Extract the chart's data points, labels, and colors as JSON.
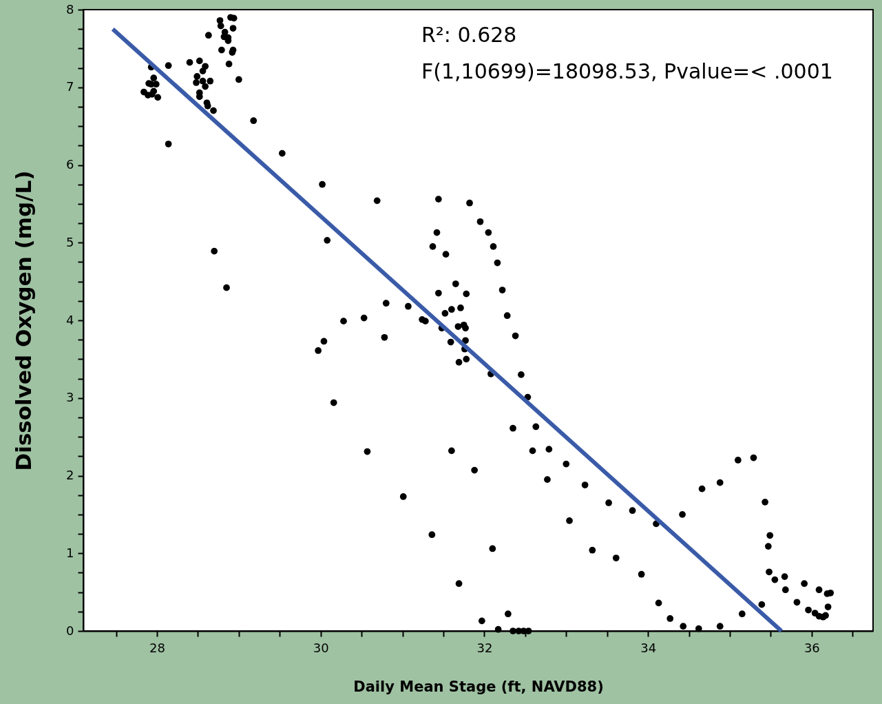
{
  "chart_data": {
    "type": "scatter",
    "xlabel": "Daily Mean Stage (ft, NAVD88)",
    "ylabel": "Dissolved Oxygen (mg/L)",
    "annotations": [
      "R²: 0.628",
      "F(1,10699)=18098.53, Pvalue=< .0001"
    ],
    "xlim": [
      27.1,
      36.75
    ],
    "ylim": [
      0,
      8
    ],
    "xticks": [
      {
        "value": 27.5,
        "label": null
      },
      28,
      {
        "value": 28.5,
        "label": null
      },
      {
        "value": 29,
        "label": null
      },
      {
        "value": 29.5,
        "label": null
      },
      30,
      {
        "value": 30.5,
        "label": null
      },
      {
        "value": 31,
        "label": null
      },
      {
        "value": 31.5,
        "label": null
      },
      32,
      {
        "value": 32.5,
        "label": null
      },
      {
        "value": 33,
        "label": null
      },
      {
        "value": 33.5,
        "label": null
      },
      34,
      {
        "value": 34.5,
        "label": null
      },
      {
        "value": 35,
        "label": null
      },
      {
        "value": 35.5,
        "label": null
      },
      36,
      {
        "value": 36.5,
        "label": null
      }
    ],
    "yticks": [
      0,
      {
        "value": 0.25,
        "label": null
      },
      {
        "value": 0.5,
        "label": null
      },
      {
        "value": 0.75,
        "label": null
      },
      1,
      {
        "value": 1.25,
        "label": null
      },
      {
        "value": 1.5,
        "label": null
      },
      {
        "value": 1.75,
        "label": null
      },
      2,
      {
        "value": 2.25,
        "label": null
      },
      {
        "value": 2.5,
        "label": null
      },
      {
        "value": 2.75,
        "label": null
      },
      3,
      {
        "value": 3.25,
        "label": null
      },
      {
        "value": 3.5,
        "label": null
      },
      {
        "value": 3.75,
        "label": null
      },
      4,
      {
        "value": 4.25,
        "label": null
      },
      {
        "value": 4.5,
        "label": null
      },
      {
        "value": 4.75,
        "label": null
      },
      5,
      {
        "value": 5.25,
        "label": null
      },
      {
        "value": 5.5,
        "label": null
      },
      {
        "value": 5.75,
        "label": null
      },
      6,
      {
        "value": 6.25,
        "label": null
      },
      {
        "value": 6.5,
        "label": null
      },
      {
        "value": 6.75,
        "label": null
      },
      7,
      {
        "value": 7.25,
        "label": null
      },
      {
        "value": 7.5,
        "label": null
      },
      {
        "value": 7.75,
        "label": null
      },
      8
    ],
    "grid": false,
    "series": [
      {
        "color": "#000000",
        "marker": "circle",
        "x": [
          27.84,
          27.89,
          27.94,
          27.96,
          28.01,
          27.9,
          27.93,
          27.99,
          27.96,
          27.93,
          28.14,
          28.14,
          28.4,
          28.52,
          28.59,
          28.56,
          28.49,
          28.48,
          28.56,
          28.65,
          28.59,
          28.52,
          28.52,
          28.61,
          28.62,
          28.69,
          28.7,
          28.85,
          28.63,
          28.77,
          28.78,
          28.79,
          28.83,
          28.82,
          28.87,
          28.87,
          28.9,
          28.94,
          28.93,
          28.93,
          28.92,
          28.88,
          29.0,
          29.18,
          29.53,
          30.02,
          30.08,
          30.69,
          31.44,
          31.82,
          31.95,
          32.05,
          32.11,
          32.16,
          32.22,
          32.28,
          32.38,
          31.42,
          31.37,
          31.53,
          31.65,
          31.44,
          31.78,
          31.71,
          31.6,
          31.52,
          30.8,
          31.07,
          31.24,
          31.28,
          31.48,
          31.68,
          31.75,
          31.77,
          31.77,
          31.59,
          31.76,
          31.78,
          31.69,
          32.08,
          30.28,
          30.53,
          30.78,
          30.04,
          29.97,
          32.45,
          32.53,
          30.16,
          32.35,
          32.63,
          30.57,
          31.6,
          32.59,
          32.79,
          31.88,
          33.0,
          32.77,
          33.23,
          31.01,
          33.04,
          31.36,
          32.1,
          31.69,
          32.29,
          31.97,
          32.17,
          32.35,
          32.42,
          32.48,
          32.54,
          33.52,
          33.81,
          34.1,
          33.32,
          33.61,
          33.92,
          34.42,
          34.66,
          34.88,
          35.1,
          35.29,
          35.43,
          35.49,
          35.47,
          35.48,
          35.55,
          35.67,
          35.68,
          35.91,
          35.82,
          35.96,
          36.04,
          36.09,
          36.14,
          36.17,
          36.09,
          36.19,
          36.23,
          36.2,
          35.39,
          35.15,
          34.13,
          34.27,
          34.43,
          34.62,
          34.88
        ],
        "values": [
          6.94,
          6.9,
          6.91,
          6.95,
          6.87,
          7.05,
          7.04,
          7.04,
          7.12,
          7.26,
          7.28,
          6.27,
          7.32,
          7.34,
          7.27,
          7.21,
          7.14,
          7.06,
          7.08,
          7.08,
          7.01,
          6.93,
          6.88,
          6.8,
          6.76,
          6.7,
          4.89,
          4.42,
          7.67,
          7.86,
          7.79,
          7.48,
          7.71,
          7.65,
          7.64,
          7.6,
          7.9,
          7.89,
          7.76,
          7.48,
          7.45,
          7.3,
          7.1,
          6.57,
          6.15,
          5.75,
          5.03,
          5.54,
          5.56,
          5.51,
          5.27,
          5.13,
          4.95,
          4.74,
          4.39,
          4.06,
          3.8,
          5.13,
          4.95,
          4.85,
          4.47,
          4.35,
          4.34,
          4.16,
          4.14,
          4.09,
          4.22,
          4.18,
          4.01,
          3.99,
          3.9,
          3.92,
          3.94,
          3.9,
          3.74,
          3.72,
          3.63,
          3.5,
          3.46,
          3.31,
          3.99,
          4.03,
          3.78,
          3.73,
          3.61,
          3.3,
          3.01,
          2.94,
          2.61,
          2.63,
          2.31,
          2.32,
          2.32,
          2.34,
          2.07,
          2.15,
          1.95,
          1.88,
          1.73,
          1.42,
          1.24,
          1.06,
          0.61,
          0.22,
          0.13,
          0.02,
          0,
          0,
          0,
          0,
          1.65,
          1.55,
          1.38,
          1.04,
          0.94,
          0.73,
          1.5,
          1.83,
          1.91,
          2.2,
          2.23,
          1.66,
          1.23,
          1.09,
          0.76,
          0.66,
          0.7,
          0.53,
          0.61,
          0.37,
          0.27,
          0.23,
          0.19,
          0.18,
          0.2,
          0.53,
          0.48,
          0.49,
          0.31,
          0.34,
          0.22,
          0.36,
          0.16,
          0.06,
          0.03,
          0.06
        ]
      },
      {
        "type": "line",
        "color": "#3a5ba8",
        "line_style": "solid",
        "marker": "none",
        "x": [
          27.46,
          35.63
        ],
        "values": [
          7.75,
          0
        ]
      }
    ]
  }
}
